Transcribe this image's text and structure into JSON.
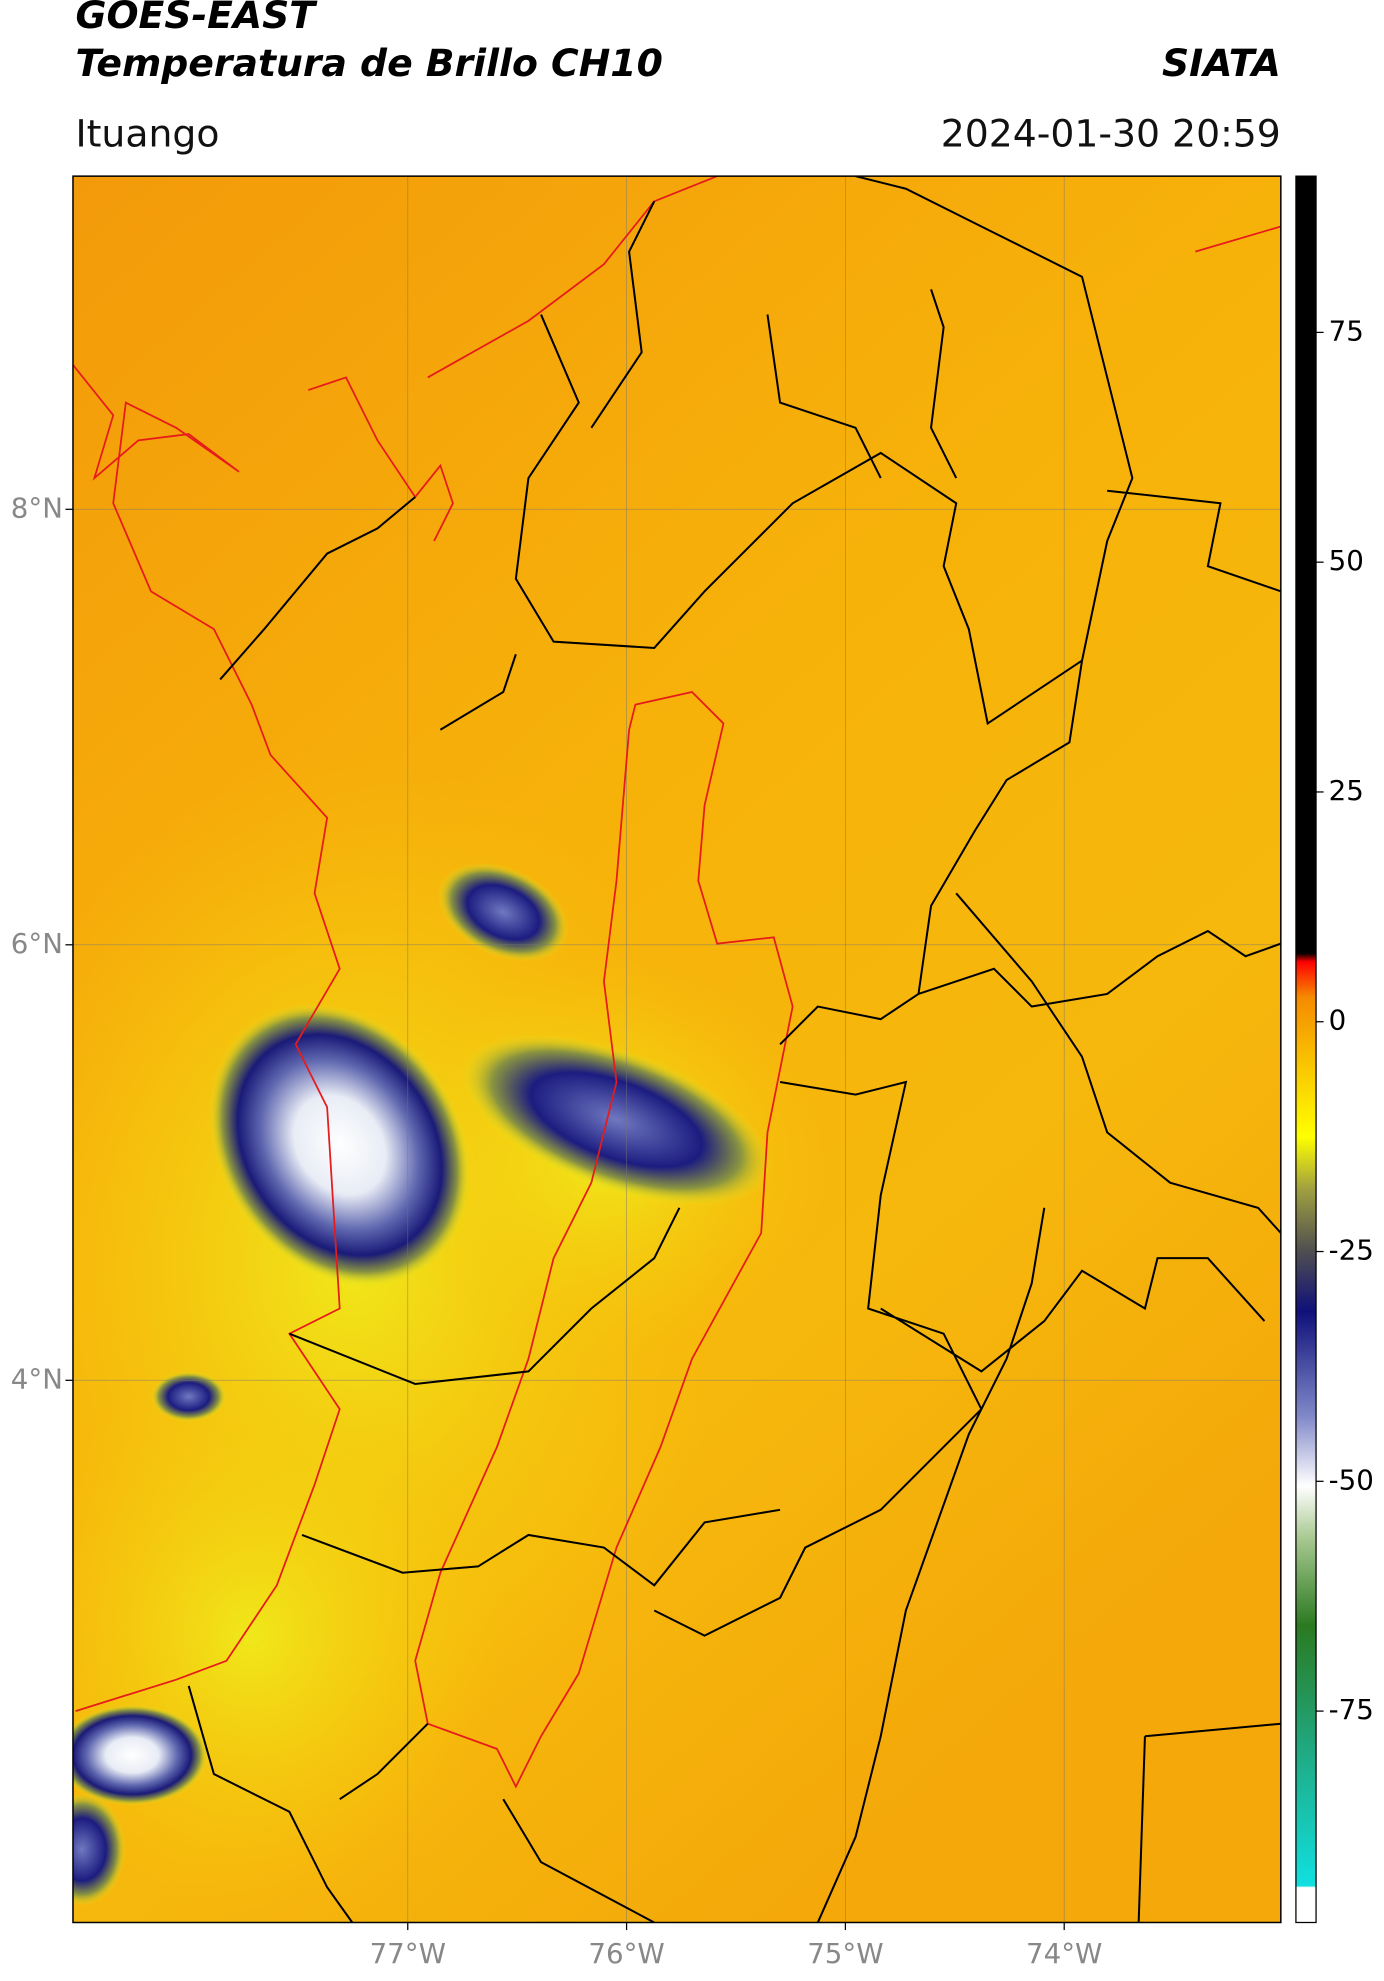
{
  "header": {
    "title": "GOES-EAST",
    "subtitle": "Temperatura de Brillo CH10",
    "source": "SIATA",
    "region": "Ituango",
    "timestamp": "2024-01-30 20:59"
  },
  "map": {
    "xlim": [
      -78.53,
      -73.01
    ],
    "ylim": [
      1.51,
      9.53
    ],
    "lon_ticks": [
      {
        "value": -77,
        "label": "77°W"
      },
      {
        "value": -76,
        "label": "76°W"
      },
      {
        "value": -75,
        "label": "75°W"
      },
      {
        "value": -74,
        "label": "74°W"
      }
    ],
    "lat_ticks": [
      {
        "value": 8,
        "label": "8°N"
      },
      {
        "value": 6,
        "label": "6°N"
      },
      {
        "value": 4,
        "label": "4°N"
      }
    ]
  },
  "colorbar": {
    "range": [
      -98,
      92
    ],
    "ticks": [
      75,
      50,
      25,
      0,
      -25,
      -50,
      -75
    ]
  }
}
